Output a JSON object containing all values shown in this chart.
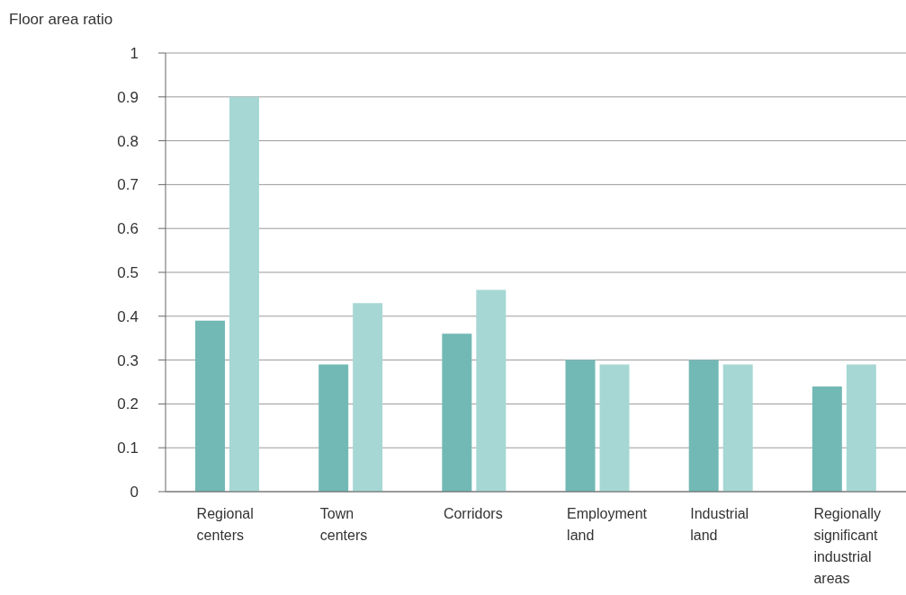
{
  "chart_data": {
    "type": "bar",
    "ylabel": "Floor area ratio",
    "categories": [
      "Regional centers",
      "Town centers",
      "Corridors",
      "Employment land",
      "Industrial land",
      "Regionally significant industrial areas"
    ],
    "series": [
      {
        "color": "#72b9b5",
        "values": [
          0.39,
          0.29,
          0.36,
          0.3,
          0.3,
          0.24
        ]
      },
      {
        "color": "#a6d7d4",
        "values": [
          0.9,
          0.43,
          0.46,
          0.29,
          0.29,
          0.29
        ]
      }
    ],
    "ylim": [
      0,
      1
    ],
    "yticks": [
      0,
      0.1,
      0.2,
      0.3,
      0.4,
      0.5,
      0.6,
      0.7,
      0.8,
      0.9,
      1
    ],
    "grid": "y",
    "legend": false
  }
}
